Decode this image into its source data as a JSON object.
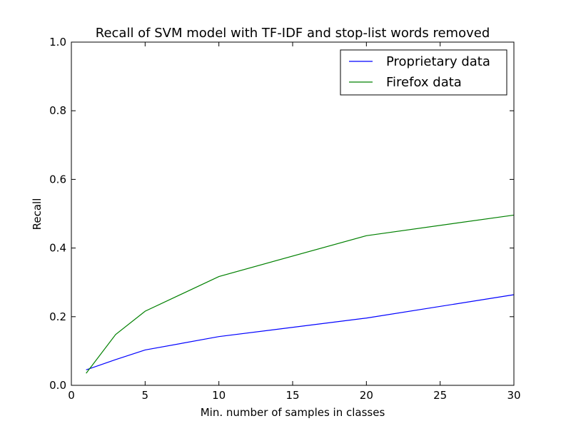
{
  "chart_data": {
    "type": "line",
    "title": "Recall of SVM model with TF-IDF and stop-list words removed",
    "xlabel": "Min. number of samples in classes",
    "ylabel": "Recall",
    "xlim": [
      0,
      30
    ],
    "ylim": [
      0.0,
      1.0
    ],
    "x_ticks": [
      0,
      5,
      10,
      15,
      20,
      25,
      30
    ],
    "x_tick_labels": [
      "0",
      "5",
      "10",
      "15",
      "20",
      "25",
      "30"
    ],
    "y_ticks": [
      0.0,
      0.2,
      0.4,
      0.6,
      0.8,
      1.0
    ],
    "y_tick_labels": [
      "0.0",
      "0.2",
      "0.4",
      "0.6",
      "0.8",
      "1.0"
    ],
    "grid": false,
    "legend_position": "top-right",
    "series": [
      {
        "name": "Proprietary data",
        "color": "#0000ff",
        "x": [
          1,
          3,
          5,
          10,
          20,
          30
        ],
        "y": [
          0.045,
          0.075,
          0.103,
          0.142,
          0.196,
          0.264
        ]
      },
      {
        "name": "Firefox data",
        "color": "#008000",
        "x": [
          1,
          3,
          5,
          10,
          20,
          30
        ],
        "y": [
          0.035,
          0.148,
          0.216,
          0.317,
          0.436,
          0.496
        ]
      }
    ]
  }
}
